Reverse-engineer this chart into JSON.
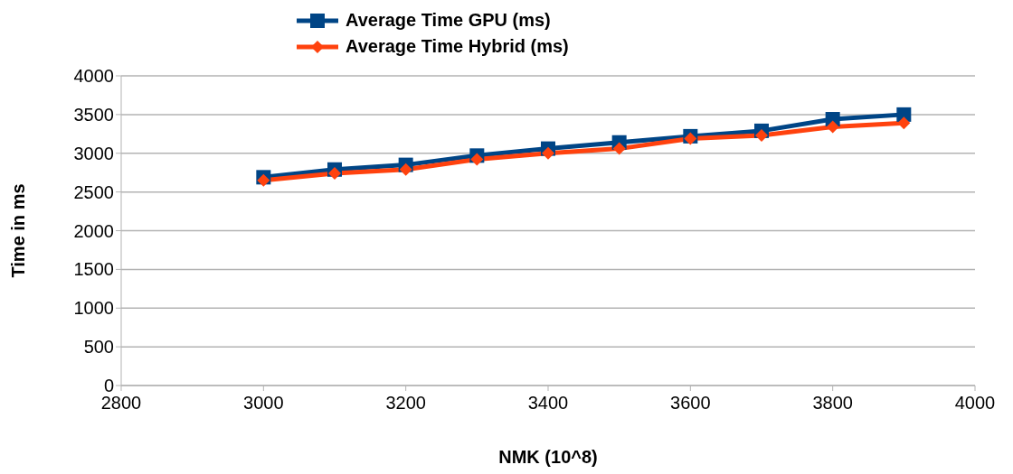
{
  "chart_data": {
    "type": "line",
    "xlabel": "NMK (10^8)",
    "ylabel": "Time in ms",
    "x": [
      3000,
      3100,
      3200,
      3300,
      3400,
      3500,
      3600,
      3700,
      3800,
      3900
    ],
    "series": [
      {
        "name": "Average Time GPU (ms)",
        "color": "#004586",
        "marker": "square",
        "values": [
          2690,
          2790,
          2850,
          2970,
          3060,
          3140,
          3220,
          3290,
          3440,
          3500
        ]
      },
      {
        "name": "Average Time Hybrid (ms)",
        "color": "#ff420e",
        "marker": "diamond",
        "values": [
          2650,
          2740,
          2790,
          2920,
          3000,
          3060,
          3190,
          3230,
          3340,
          3390
        ]
      }
    ],
    "xlim": [
      2800,
      4000
    ],
    "xticks": [
      2800,
      3000,
      3200,
      3400,
      3600,
      3800,
      4000
    ],
    "ylim": [
      0,
      4000
    ],
    "yticks": [
      0,
      500,
      1000,
      1500,
      2000,
      2500,
      3000,
      3500,
      4000
    ],
    "grid": "y",
    "legend": "top",
    "line_style": "solid"
  }
}
